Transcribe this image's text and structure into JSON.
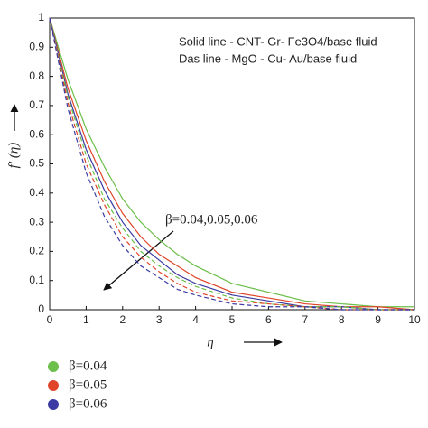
{
  "chart_data": {
    "type": "line",
    "x": [
      0,
      0.5,
      1,
      1.5,
      2,
      2.5,
      3,
      3.5,
      4,
      5,
      6,
      7,
      8,
      9,
      10
    ],
    "series": [
      {
        "color": "#6cbf4a",
        "dash": false,
        "values": [
          1,
          0.79,
          0.62,
          0.49,
          0.38,
          0.3,
          0.24,
          0.19,
          0.15,
          0.09,
          0.06,
          0.03,
          0.02,
          0.01,
          0.01
        ]
      },
      {
        "color": "#e0452a",
        "dash": false,
        "values": [
          1,
          0.76,
          0.58,
          0.44,
          0.33,
          0.25,
          0.19,
          0.15,
          0.11,
          0.06,
          0.04,
          0.02,
          0.01,
          0.01,
          0
        ]
      },
      {
        "color": "#3b3ba3",
        "dash": false,
        "values": [
          1,
          0.74,
          0.55,
          0.41,
          0.3,
          0.22,
          0.17,
          0.12,
          0.09,
          0.05,
          0.03,
          0.01,
          0.01,
          0,
          0
        ]
      },
      {
        "color": "#6cbf4a",
        "dash": true,
        "values": [
          1,
          0.73,
          0.53,
          0.38,
          0.28,
          0.2,
          0.15,
          0.11,
          0.08,
          0.04,
          0.02,
          0.01,
          0.01,
          0,
          0
        ]
      },
      {
        "color": "#e0452a",
        "dash": true,
        "values": [
          1,
          0.71,
          0.5,
          0.36,
          0.25,
          0.18,
          0.13,
          0.09,
          0.06,
          0.03,
          0.02,
          0.01,
          0,
          0,
          0
        ]
      },
      {
        "color": "#3b3ba3",
        "dash": true,
        "values": [
          1,
          0.69,
          0.47,
          0.32,
          0.22,
          0.15,
          0.11,
          0.07,
          0.05,
          0.02,
          0.01,
          0.01,
          0,
          0,
          0
        ]
      }
    ],
    "legend": [
      {
        "name": "β=0.04",
        "color": "#6cbf4a"
      },
      {
        "name": "β=0.05",
        "color": "#e0452a"
      },
      {
        "name": "β=0.06",
        "color": "#3b3ba3"
      }
    ],
    "xlim": [
      0,
      10
    ],
    "xticks": [
      0,
      1,
      2,
      3,
      4,
      5,
      6,
      7,
      8,
      9,
      10
    ],
    "ylim": [
      0,
      1
    ],
    "yticks": [
      0,
      0.1,
      0.2,
      0.3,
      0.4,
      0.5,
      0.6,
      0.7,
      0.8,
      0.9,
      1
    ],
    "xlabel": "η",
    "ylabel": "f′ (η)",
    "annotations": [
      "Solid line - CNT- Gr- Fe3O4/base fluid",
      "Das line - MgO - Cu- Au/base fluid",
      "β=0.04,0.05,0.06"
    ]
  }
}
